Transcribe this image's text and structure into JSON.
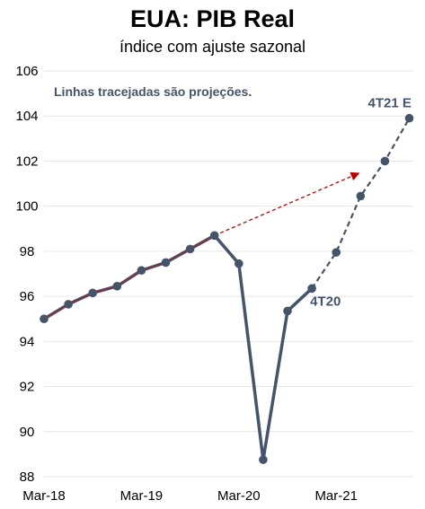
{
  "chart_data": {
    "type": "line",
    "title": "EUA: PIB Real",
    "subtitle": "índice com ajuste sazonal",
    "ylim": [
      88,
      106
    ],
    "yticks": [
      88,
      90,
      92,
      94,
      96,
      98,
      100,
      102,
      104,
      106
    ],
    "x_ticks": [
      {
        "label": "Mar-18",
        "q": 0
      },
      {
        "label": "Mar-19",
        "q": 4
      },
      {
        "label": "Mar-20",
        "q": 8
      },
      {
        "label": "Mar-21",
        "q": 12
      }
    ],
    "grid": "horizontal",
    "note": "Linhas tracejadas são projeções.",
    "series": [
      {
        "style": "solid",
        "color": "#44546a",
        "points": [
          {
            "q": 0,
            "y": 95.0
          },
          {
            "q": 1,
            "y": 95.65
          },
          {
            "q": 2,
            "y": 96.15
          },
          {
            "q": 3,
            "y": 96.45
          },
          {
            "q": 4,
            "y": 97.15
          },
          {
            "q": 5,
            "y": 97.5
          },
          {
            "q": 6,
            "y": 98.1
          },
          {
            "q": 7,
            "y": 98.7
          },
          {
            "q": 8,
            "y": 97.45
          },
          {
            "q": 9,
            "y": 88.75
          },
          {
            "q": 10,
            "y": 95.35
          },
          {
            "q": 11,
            "y": 96.35
          }
        ]
      },
      {
        "style": "dashed",
        "color": "#44546a",
        "points": [
          {
            "q": 11,
            "y": 96.35
          },
          {
            "q": 12,
            "y": 97.95
          },
          {
            "q": 13,
            "y": 100.45
          },
          {
            "q": 14,
            "y": 102.0
          },
          {
            "q": 15,
            "y": 103.9
          }
        ]
      }
    ],
    "trend_overlay": {
      "color": "#8b2e3c",
      "from": 0,
      "to": 7
    },
    "trend_arrow": {
      "color": "#c00000",
      "from": {
        "q": 7,
        "y": 98.7
      },
      "to": {
        "q": 12.9,
        "y": 101.45
      }
    },
    "annotations": [
      {
        "text": "4T20",
        "q": 11,
        "y": 96.35
      },
      {
        "text": "4T21 E",
        "q": 15,
        "y": 103.9
      }
    ]
  }
}
